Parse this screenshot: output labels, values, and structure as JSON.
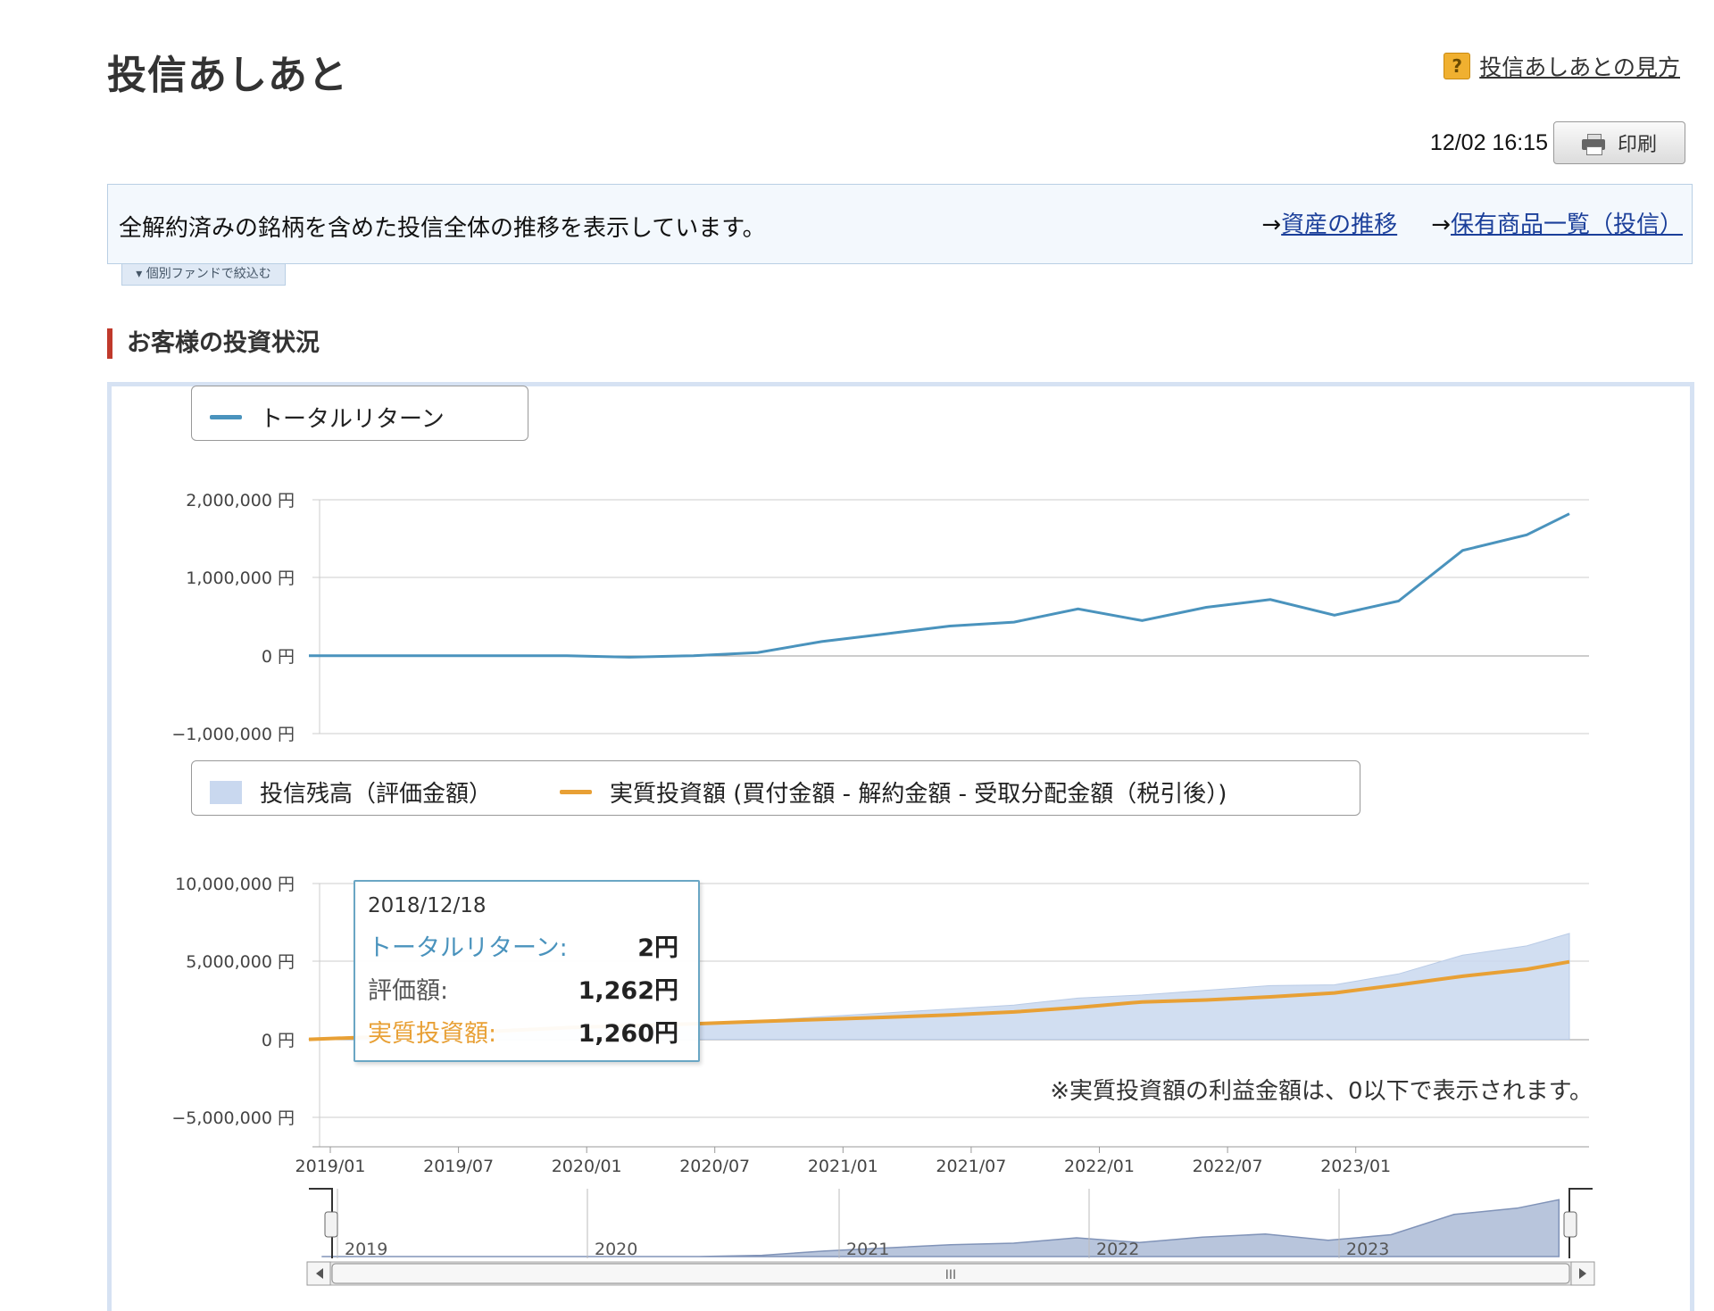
{
  "header": {
    "title": "投信あしあと",
    "help_link": "投信あしあとの見方",
    "timestamp": "12/02 16:15",
    "print_label": "印刷"
  },
  "info_bar": {
    "text": "全解約済みの銘柄を含めた投信全体の推移を表示しています。",
    "link_assets": "資産の推移",
    "link_holdings": "保有商品一覧（投信）",
    "arrow": "→",
    "filter_tab": "▾ 個別ファンドで絞込む"
  },
  "section": {
    "heading": "お客様の投資状況"
  },
  "colors": {
    "total_return": "#4a93bd",
    "balance_fill": "#c9d8ef",
    "invested": "#e8a035",
    "accent_red": "#c0392b"
  },
  "chart_data": [
    {
      "type": "line",
      "legend": [
        "トータルリターン"
      ],
      "y_ticks": [
        "2,000,000 円",
        "1,000,000 円",
        "0 円",
        "−1,000,000 円"
      ],
      "ylim": [
        -1000000,
        2000000
      ],
      "series": [
        {
          "name": "トータルリターン",
          "x": [
            "2018/12",
            "2019/03",
            "2019/06",
            "2019/09",
            "2019/12",
            "2020/03",
            "2020/06",
            "2020/09",
            "2020/12",
            "2021/03",
            "2021/06",
            "2021/09",
            "2021/12",
            "2022/03",
            "2022/06",
            "2022/09",
            "2022/12",
            "2023/03",
            "2023/06",
            "2023/09",
            "2023/11"
          ],
          "values": [
            0,
            0,
            0,
            0,
            0,
            -20000,
            0,
            40000,
            180000,
            280000,
            380000,
            430000,
            600000,
            450000,
            620000,
            720000,
            520000,
            700000,
            1350000,
            1550000,
            1820000
          ]
        }
      ]
    },
    {
      "type": "area",
      "legend": [
        "投信残高（評価金額）",
        "実質投資額 (買付金額 - 解約金額 - 受取分配金額（税引後）)"
      ],
      "y_ticks": [
        "10,000,000 円",
        "5,000,000 円",
        "0 円",
        "−5,000,000 円"
      ],
      "ylim": [
        -5000000,
        10000000
      ],
      "x_ticks": [
        "2019/01",
        "2019/07",
        "2020/01",
        "2020/07",
        "2021/01",
        "2021/07",
        "2022/01",
        "2022/07",
        "2023/01"
      ],
      "series": [
        {
          "name": "投信残高（評価金額）",
          "x": [
            "2018/12",
            "2019/03",
            "2019/06",
            "2019/09",
            "2019/12",
            "2020/03",
            "2020/06",
            "2020/09",
            "2020/12",
            "2021/03",
            "2021/06",
            "2021/09",
            "2021/12",
            "2022/03",
            "2022/06",
            "2022/09",
            "2022/12",
            "2023/03",
            "2023/06",
            "2023/09",
            "2023/11"
          ],
          "values": [
            1262,
            150000,
            350000,
            550000,
            750000,
            850000,
            1000000,
            1200000,
            1450000,
            1700000,
            1950000,
            2200000,
            2650000,
            2850000,
            3150000,
            3450000,
            3500000,
            4200000,
            5400000,
            6000000,
            6800000
          ]
        },
        {
          "name": "実質投資額 (買付金額 - 解約金額 - 受取分配金額（税引後）)",
          "x": [
            "2018/12",
            "2019/03",
            "2019/06",
            "2019/09",
            "2019/12",
            "2020/03",
            "2020/06",
            "2020/09",
            "2020/12",
            "2021/03",
            "2021/06",
            "2021/09",
            "2021/12",
            "2022/03",
            "2022/06",
            "2022/09",
            "2022/12",
            "2023/03",
            "2023/06",
            "2023/09",
            "2023/11"
          ],
          "values": [
            1260,
            150000,
            350000,
            550000,
            750000,
            880000,
            1000000,
            1150000,
            1280000,
            1420000,
            1570000,
            1760000,
            2050000,
            2400000,
            2530000,
            2730000,
            2980000,
            3500000,
            4050000,
            4500000,
            4980000
          ]
        }
      ],
      "note": "※実質投資額の利益金額は、0以下で表示されます。"
    }
  ],
  "tooltip": {
    "date": "2018/12/18",
    "total_return_label": "トータルリターン:",
    "total_return_value": "2円",
    "valuation_label": "評価額:",
    "valuation_value": "1,262円",
    "invested_label": "実質投資額:",
    "invested_value": "1,260円"
  },
  "navigator": {
    "year_labels": [
      "2019",
      "2020",
      "2021",
      "2022",
      "2023"
    ],
    "scroll_grip": "III"
  }
}
